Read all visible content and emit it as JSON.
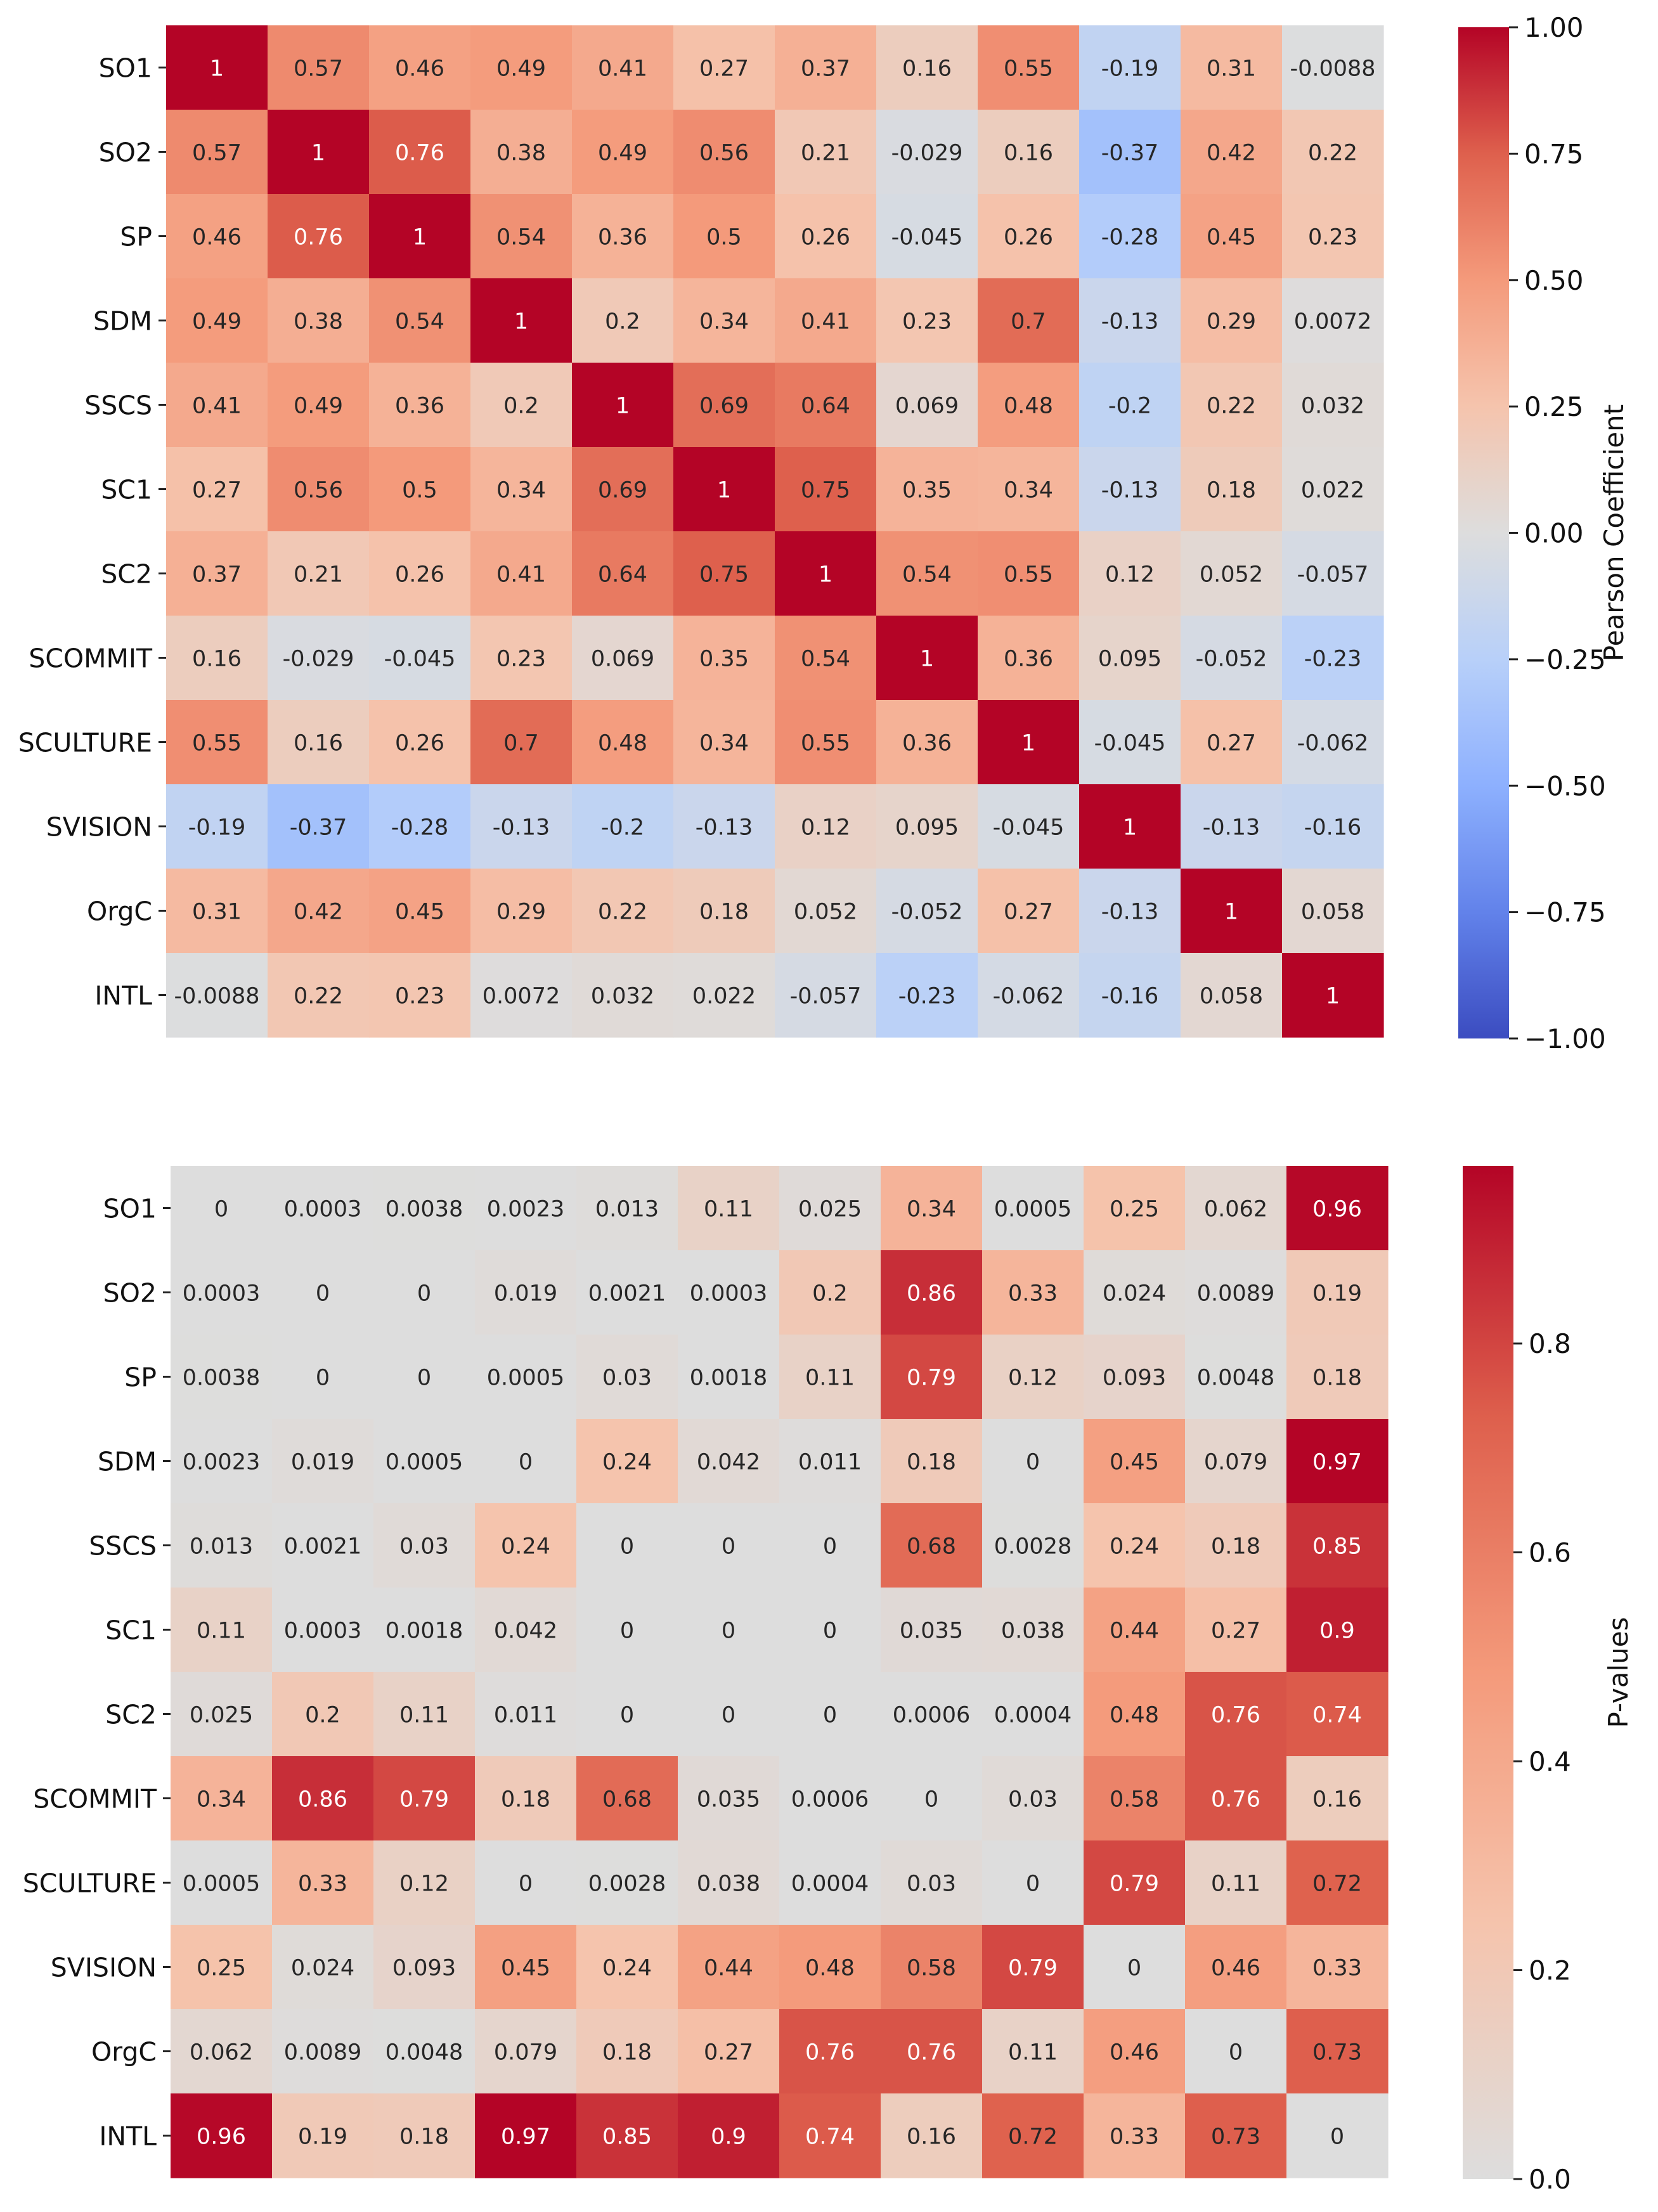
{
  "chart_data": [
    {
      "type": "heatmap",
      "labels": [
        "SO1",
        "SO2",
        "SP",
        "SDM",
        "SSCS",
        "SC1",
        "SC2",
        "SCOMMIT",
        "SCULTURE",
        "SVISION",
        "OrgC",
        "INTL"
      ],
      "values": [
        [
          "1",
          "0.57",
          "0.46",
          "0.49",
          "0.41",
          "0.27",
          "0.37",
          "0.16",
          "0.55",
          "-0.19",
          "0.31",
          "-0.0088"
        ],
        [
          "0.57",
          "1",
          "0.76",
          "0.38",
          "0.49",
          "0.56",
          "0.21",
          "-0.029",
          "0.16",
          "-0.37",
          "0.42",
          "0.22"
        ],
        [
          "0.46",
          "0.76",
          "1",
          "0.54",
          "0.36",
          "0.5",
          "0.26",
          "-0.045",
          "0.26",
          "-0.28",
          "0.45",
          "0.23"
        ],
        [
          "0.49",
          "0.38",
          "0.54",
          "1",
          "0.2",
          "0.34",
          "0.41",
          "0.23",
          "0.7",
          "-0.13",
          "0.29",
          "0.0072"
        ],
        [
          "0.41",
          "0.49",
          "0.36",
          "0.2",
          "1",
          "0.69",
          "0.64",
          "0.069",
          "0.48",
          "-0.2",
          "0.22",
          "0.032"
        ],
        [
          "0.27",
          "0.56",
          "0.5",
          "0.34",
          "0.69",
          "1",
          "0.75",
          "0.35",
          "0.34",
          "-0.13",
          "0.18",
          "0.022"
        ],
        [
          "0.37",
          "0.21",
          "0.26",
          "0.41",
          "0.64",
          "0.75",
          "1",
          "0.54",
          "0.55",
          "0.12",
          "0.052",
          "-0.057"
        ],
        [
          "0.16",
          "-0.029",
          "-0.045",
          "0.23",
          "0.069",
          "0.35",
          "0.54",
          "1",
          "0.36",
          "0.095",
          "-0.052",
          "-0.23"
        ],
        [
          "0.55",
          "0.16",
          "0.26",
          "0.7",
          "0.48",
          "0.34",
          "0.55",
          "0.36",
          "1",
          "-0.045",
          "0.27",
          "-0.062"
        ],
        [
          "-0.19",
          "-0.37",
          "-0.28",
          "-0.13",
          "-0.2",
          "-0.13",
          "0.12",
          "0.095",
          "-0.045",
          "1",
          "-0.13",
          "-0.16"
        ],
        [
          "0.31",
          "0.42",
          "0.45",
          "0.29",
          "0.22",
          "0.18",
          "0.052",
          "-0.052",
          "0.27",
          "-0.13",
          "1",
          "0.058"
        ],
        [
          "-0.0088",
          "0.22",
          "0.23",
          "0.0072",
          "0.032",
          "0.022",
          "-0.057",
          "-0.23",
          "-0.062",
          "-0.16",
          "0.058",
          "1"
        ]
      ],
      "colorbar": {
        "label": "Pearson Coefficient",
        "vmin": -1,
        "vmax": 1,
        "ticks": [
          "1.00",
          "0.75",
          "0.50",
          "0.25",
          "0.00",
          "-0.25",
          "-0.50",
          "-0.75",
          "-1.00"
        ],
        "tick_values": [
          1,
          0.75,
          0.5,
          0.25,
          0,
          -0.25,
          -0.5,
          -0.75,
          -1
        ]
      },
      "colormap": "coolwarm"
    },
    {
      "type": "heatmap",
      "labels": [
        "SO1",
        "SO2",
        "SP",
        "SDM",
        "SSCS",
        "SC1",
        "SC2",
        "SCOMMIT",
        "SCULTURE",
        "SVISION",
        "OrgC",
        "INTL"
      ],
      "values": [
        [
          "0",
          "0.0003",
          "0.0038",
          "0.0023",
          "0.013",
          "0.11",
          "0.025",
          "0.34",
          "0.0005",
          "0.25",
          "0.062",
          "0.96"
        ],
        [
          "0.0003",
          "0",
          "0",
          "0.019",
          "0.0021",
          "0.0003",
          "0.2",
          "0.86",
          "0.33",
          "0.024",
          "0.0089",
          "0.19"
        ],
        [
          "0.0038",
          "0",
          "0",
          "0.0005",
          "0.03",
          "0.0018",
          "0.11",
          "0.79",
          "0.12",
          "0.093",
          "0.0048",
          "0.18"
        ],
        [
          "0.0023",
          "0.019",
          "0.0005",
          "0",
          "0.24",
          "0.042",
          "0.011",
          "0.18",
          "0",
          "0.45",
          "0.079",
          "0.97"
        ],
        [
          "0.013",
          "0.0021",
          "0.03",
          "0.24",
          "0",
          "0",
          "0",
          "0.68",
          "0.0028",
          "0.24",
          "0.18",
          "0.85"
        ],
        [
          "0.11",
          "0.0003",
          "0.0018",
          "0.042",
          "0",
          "0",
          "0",
          "0.035",
          "0.038",
          "0.44",
          "0.27",
          "0.9"
        ],
        [
          "0.025",
          "0.2",
          "0.11",
          "0.011",
          "0",
          "0",
          "0",
          "0.0006",
          "0.0004",
          "0.48",
          "0.76",
          "0.74"
        ],
        [
          "0.34",
          "0.86",
          "0.79",
          "0.18",
          "0.68",
          "0.035",
          "0.0006",
          "0",
          "0.03",
          "0.58",
          "0.76",
          "0.16"
        ],
        [
          "0.0005",
          "0.33",
          "0.12",
          "0",
          "0.0028",
          "0.038",
          "0.0004",
          "0.03",
          "0",
          "0.79",
          "0.11",
          "0.72"
        ],
        [
          "0.25",
          "0.024",
          "0.093",
          "0.45",
          "0.24",
          "0.44",
          "0.48",
          "0.58",
          "0.79",
          "0",
          "0.46",
          "0.33"
        ],
        [
          "0.062",
          "0.0089",
          "0.0048",
          "0.079",
          "0.18",
          "0.27",
          "0.76",
          "0.76",
          "0.11",
          "0.46",
          "0",
          "0.73"
        ],
        [
          "0.96",
          "0.19",
          "0.18",
          "0.97",
          "0.85",
          "0.9",
          "0.74",
          "0.16",
          "0.72",
          "0.33",
          "0.73",
          "0"
        ]
      ],
      "colorbar": {
        "label": "P-values",
        "vmin": 0,
        "vmax": 0.97,
        "ticks": [
          "0.8",
          "0.6",
          "0.4",
          "0.2",
          "0.0"
        ],
        "tick_values": [
          0.8,
          0.6,
          0.4,
          0.2,
          0
        ]
      },
      "colormap": "coolwarm (lower half, light grey to dark red)"
    }
  ]
}
